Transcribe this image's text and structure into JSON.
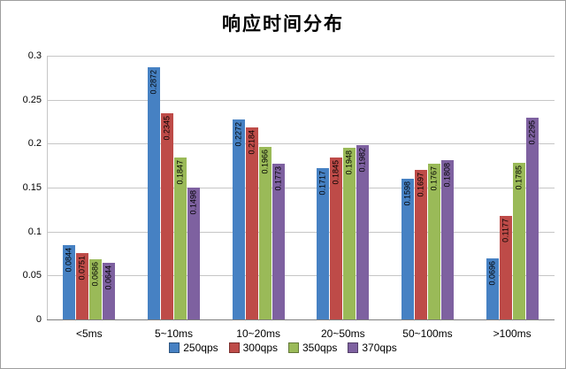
{
  "title": "响应时间分布",
  "chart_data": {
    "type": "bar",
    "title": "响应时间分布",
    "categories": [
      "<5ms",
      "5~10ms",
      "10~20ms",
      "20~50ms",
      "50~100ms",
      ">100ms"
    ],
    "series": [
      {
        "name": "250qps",
        "color": "#4681c3",
        "values": [
          0.0844,
          0.2872,
          0.2272,
          0.1717,
          0.1598,
          0.0696
        ]
      },
      {
        "name": "300qps",
        "color": "#be4b48",
        "values": [
          0.0751,
          0.2345,
          0.2184,
          0.1845,
          0.1697,
          0.1177
        ]
      },
      {
        "name": "350qps",
        "color": "#9aba58",
        "values": [
          0.0686,
          0.1847,
          0.1966,
          0.1948,
          0.1767,
          0.1785
        ]
      },
      {
        "name": "370qps",
        "color": "#7e61a0",
        "values": [
          0.0644,
          0.1498,
          0.1773,
          0.1982,
          0.1808,
          0.2295
        ]
      }
    ],
    "ylim": [
      0,
      0.3
    ],
    "yticks": [
      {
        "value": 0,
        "label": "0"
      },
      {
        "value": 0.05,
        "label": "0.05"
      },
      {
        "value": 0.1,
        "label": "0.1"
      },
      {
        "value": 0.15,
        "label": "0.15"
      },
      {
        "value": 0.2,
        "label": "0.2"
      },
      {
        "value": 0.25,
        "label": "0.25"
      },
      {
        "value": 0.3,
        "label": "0.3"
      }
    ],
    "label_decimals": 4,
    "grid": true,
    "legend_position": "bottom"
  }
}
